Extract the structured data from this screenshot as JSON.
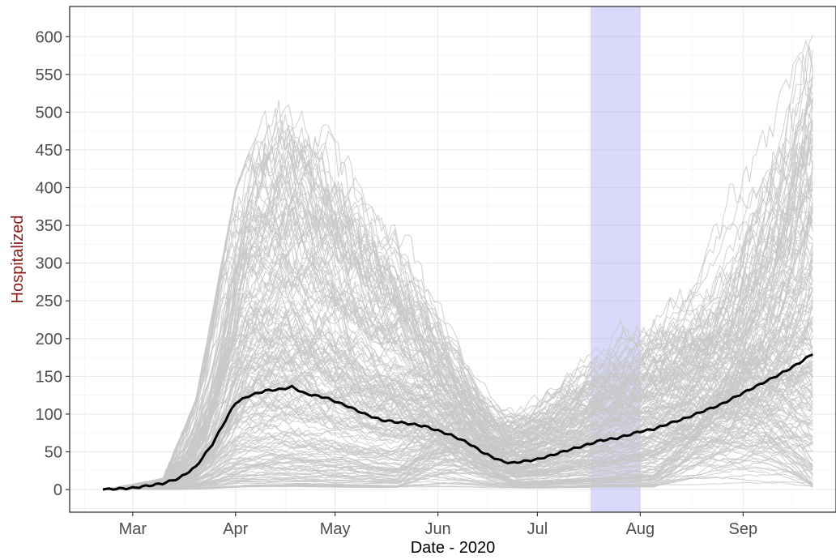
{
  "chart_data": {
    "type": "line",
    "title": "",
    "xlabel": "Date - 2020",
    "ylabel": "Hospitalized",
    "ylabel_color": "#8b1a1a",
    "x_range": [
      "2020-02-11",
      "2020-09-29"
    ],
    "ylim": [
      -30,
      640
    ],
    "y_ticks": [
      0,
      50,
      100,
      150,
      200,
      250,
      300,
      350,
      400,
      450,
      500,
      550,
      600
    ],
    "x_ticks": [
      {
        "date": "2020-03-01",
        "label": "Mar"
      },
      {
        "date": "2020-04-01",
        "label": "Apr"
      },
      {
        "date": "2020-05-01",
        "label": "May"
      },
      {
        "date": "2020-06-01",
        "label": "Jun"
      },
      {
        "date": "2020-07-01",
        "label": "Jul"
      },
      {
        "date": "2020-08-01",
        "label": "Aug"
      },
      {
        "date": "2020-09-01",
        "label": "Sep"
      }
    ],
    "grid": true,
    "legend": "none",
    "highlight_band": {
      "start": "2020-07-17",
      "end": "2020-08-01",
      "color": "#aaaaf5"
    },
    "simulation_color": "#c8c8c8",
    "mean_color": "#000000",
    "simulation_count": 200,
    "series": [
      {
        "role": "mean",
        "points": [
          [
            "2020-02-21",
            0
          ],
          [
            "2020-03-01",
            2
          ],
          [
            "2020-03-10",
            8
          ],
          [
            "2020-03-15",
            15
          ],
          [
            "2020-03-20",
            30
          ],
          [
            "2020-03-25",
            60
          ],
          [
            "2020-03-30",
            100
          ],
          [
            "2020-04-01",
            115
          ],
          [
            "2020-04-05",
            124
          ],
          [
            "2020-04-10",
            131
          ],
          [
            "2020-04-15",
            133
          ],
          [
            "2020-04-18",
            136
          ],
          [
            "2020-04-22",
            127
          ],
          [
            "2020-04-28",
            122
          ],
          [
            "2020-05-05",
            110
          ],
          [
            "2020-05-10",
            100
          ],
          [
            "2020-05-15",
            92
          ],
          [
            "2020-05-22",
            88
          ],
          [
            "2020-05-28",
            84
          ],
          [
            "2020-06-01",
            78
          ],
          [
            "2020-06-05",
            72
          ],
          [
            "2020-06-10",
            62
          ],
          [
            "2020-06-15",
            48
          ],
          [
            "2020-06-20",
            38
          ],
          [
            "2020-06-23",
            35
          ],
          [
            "2020-07-01",
            40
          ],
          [
            "2020-07-05",
            45
          ],
          [
            "2020-07-10",
            52
          ],
          [
            "2020-07-15",
            58
          ],
          [
            "2020-07-20",
            65
          ],
          [
            "2020-07-25",
            68
          ],
          [
            "2020-08-01",
            77
          ],
          [
            "2020-08-05",
            80
          ],
          [
            "2020-08-10",
            88
          ],
          [
            "2020-08-15",
            95
          ],
          [
            "2020-08-20",
            104
          ],
          [
            "2020-08-25",
            112
          ],
          [
            "2020-09-01",
            128
          ],
          [
            "2020-09-05",
            137
          ],
          [
            "2020-09-10",
            148
          ],
          [
            "2020-09-15",
            160
          ],
          [
            "2020-09-18",
            168
          ],
          [
            "2020-09-22",
            180
          ]
        ]
      }
    ],
    "simulation_envelope": [
      [
        "2020-02-21",
        0
      ],
      [
        "2020-03-10",
        15
      ],
      [
        "2020-03-20",
        120
      ],
      [
        "2020-04-01",
        400
      ],
      [
        "2020-04-15",
        570
      ],
      [
        "2020-05-01",
        470
      ],
      [
        "2020-05-15",
        380
      ],
      [
        "2020-06-01",
        300
      ],
      [
        "2020-06-22",
        150
      ],
      [
        "2020-07-10",
        210
      ],
      [
        "2020-08-01",
        270
      ],
      [
        "2020-09-01",
        450
      ],
      [
        "2020-09-22",
        610
      ]
    ]
  }
}
